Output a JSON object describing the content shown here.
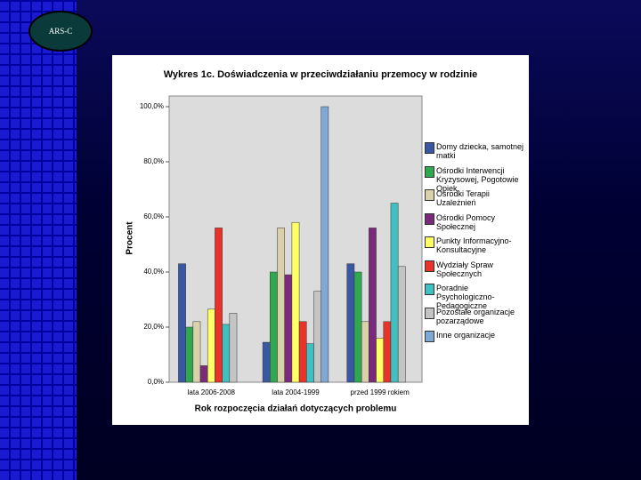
{
  "logo": "ARS-C",
  "chart_data": {
    "type": "bar",
    "title": "Wykres 1c. Doświadczenia w przeciwdziałaniu przemocy w rodzinie",
    "y_label": "Procent",
    "x_label": "Rok rozpoczęcia działań dotyczących problemu",
    "categories": [
      "lata 2006-2008",
      "lata 2004-1999",
      "przed 1999 rokiem"
    ],
    "ylim": [
      0,
      100
    ],
    "yticks": [
      {
        "value": 0,
        "label": "0,0%"
      },
      {
        "value": 20,
        "label": "20,0%"
      },
      {
        "value": 40,
        "label": "40,0%"
      },
      {
        "value": 60,
        "label": "60,0%"
      },
      {
        "value": 80,
        "label": "80,0%"
      },
      {
        "value": 100,
        "label": "100,0%"
      }
    ],
    "series": [
      {
        "name": "Domy dziecka, samotnej matki",
        "color": "#3a57a3",
        "values": [
          43,
          14.5,
          43
        ]
      },
      {
        "name": "Ośrodki Interwencji Kryzysowej, Pogotowie Opiek.",
        "color": "#2fa84f",
        "values": [
          20,
          40,
          40
        ]
      },
      {
        "name": "Ośrodki Terapii Uzależnień",
        "color": "#d9d1a9",
        "values": [
          22,
          56,
          22
        ]
      },
      {
        "name": "Ośrodki Pomocy Społecznej",
        "color": "#7b2a7b",
        "values": [
          6,
          39,
          56
        ]
      },
      {
        "name": "Punkty Informacyjno-Konsultacyjne",
        "color": "#ffff66",
        "values": [
          26.5,
          58,
          16
        ]
      },
      {
        "name": "Wydziały Spraw Społecznych",
        "color": "#e8332b",
        "values": [
          56,
          22,
          22
        ]
      },
      {
        "name": "Poradnie Psychologiczno-Pedagogiczne",
        "color": "#40c0c0",
        "values": [
          21,
          14,
          65
        ]
      },
      {
        "name": "Pozostałe organizacje pozarządowe",
        "color": "#c4c4c4",
        "values": [
          25,
          33,
          42
        ]
      },
      {
        "name": "Inne organizacje",
        "color": "#7ea9d6",
        "values": [
          null,
          100,
          null
        ]
      }
    ]
  }
}
